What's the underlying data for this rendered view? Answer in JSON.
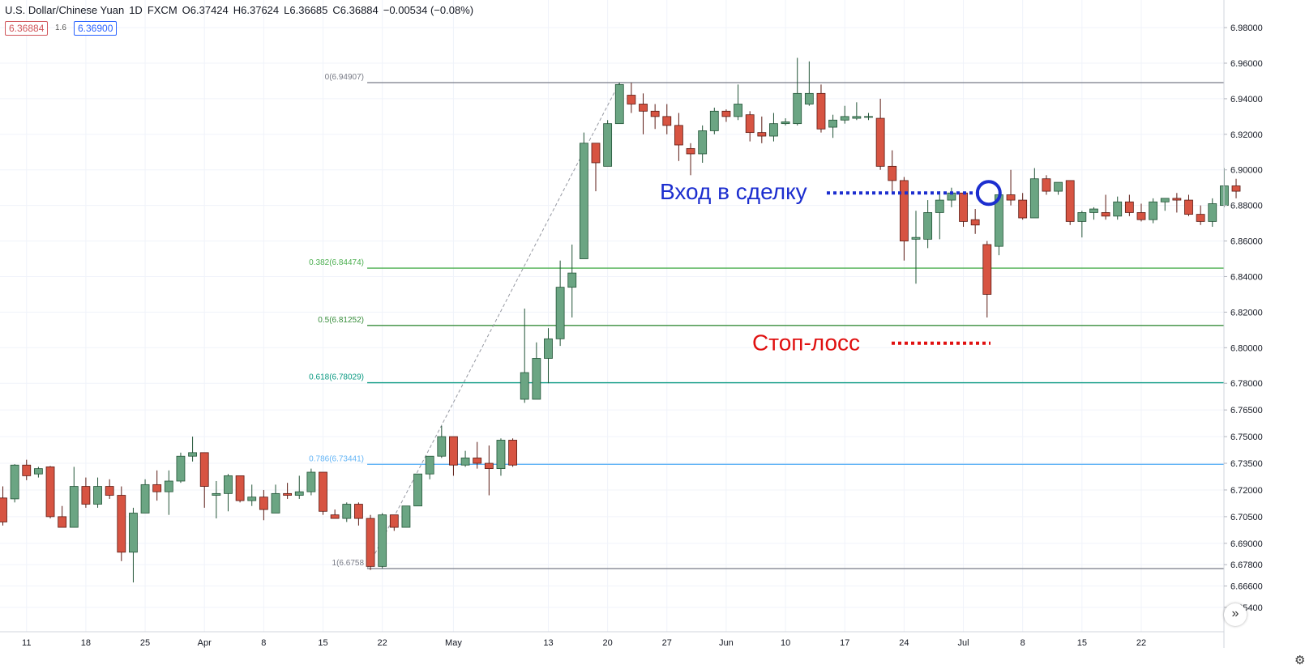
{
  "header": {
    "symbol": "U.S. Dollar/Chinese Yuan",
    "interval": "1D",
    "exchange": "FXCM",
    "open": "O6.37424",
    "high": "H6.37624",
    "low": "L6.36685",
    "close": "C6.36884",
    "change": "−0.00534 (−0.08%)"
  },
  "badges": {
    "close": "6.36884",
    "spread": "1.6",
    "ask": "6.36900"
  },
  "colors": {
    "up": "#6ba583",
    "down": "#d75442",
    "up_border": "#225437",
    "down_border": "#5b1a13"
  },
  "icons": {
    "scroll": "double-chevron-right-icon",
    "settings": "gear-icon"
  },
  "nav_glyph": "»",
  "gear_glyph": "⚙",
  "chart_data": {
    "type": "candlestick",
    "ylim": [
      6.645,
      6.99
    ],
    "y_ticks": [
      "6.98000",
      "6.96000",
      "6.94000",
      "6.92000",
      "6.90000",
      "6.88000",
      "6.86000",
      "6.84000",
      "6.82000",
      "6.80000",
      "6.78000",
      "6.76500",
      "6.75000",
      "6.73500",
      "6.72000",
      "6.70500",
      "6.69000",
      "6.67800",
      "6.66600",
      "6.65400"
    ],
    "x_labels": [
      {
        "i": 2,
        "label": "11"
      },
      {
        "i": 7,
        "label": "18"
      },
      {
        "i": 12,
        "label": "25"
      },
      {
        "i": 17,
        "label": "Apr"
      },
      {
        "i": 22,
        "label": "8"
      },
      {
        "i": 27,
        "label": "15"
      },
      {
        "i": 32,
        "label": "22"
      },
      {
        "i": 38,
        "label": "May"
      },
      {
        "i": 46,
        "label": "13"
      },
      {
        "i": 51,
        "label": "20"
      },
      {
        "i": 56,
        "label": "27"
      },
      {
        "i": 61,
        "label": "Jun"
      },
      {
        "i": 66,
        "label": "10"
      },
      {
        "i": 71,
        "label": "17"
      },
      {
        "i": 76,
        "label": "24"
      },
      {
        "i": 81,
        "label": "Jul"
      },
      {
        "i": 86,
        "label": "8"
      },
      {
        "i": 91,
        "label": "15"
      },
      {
        "i": 96,
        "label": "22"
      }
    ],
    "candles": [
      [
        6.7155,
        6.722,
        6.7,
        6.702
      ],
      [
        6.715,
        6.7345,
        6.713,
        6.734
      ],
      [
        6.734,
        6.737,
        6.7255,
        6.728
      ],
      [
        6.729,
        6.733,
        6.727,
        6.732
      ],
      [
        6.733,
        6.7335,
        6.704,
        6.705
      ],
      [
        6.705,
        6.711,
        6.699,
        6.699
      ],
      [
        6.699,
        6.733,
        6.699,
        6.722
      ],
      [
        6.722,
        6.727,
        6.71,
        6.712
      ],
      [
        6.712,
        6.727,
        6.71,
        6.722
      ],
      [
        6.722,
        6.726,
        6.715,
        6.717
      ],
      [
        6.717,
        6.722,
        6.68,
        6.685
      ],
      [
        6.685,
        6.71,
        6.668,
        6.707
      ],
      [
        6.707,
        6.726,
        6.707,
        6.723
      ],
      [
        6.723,
        6.731,
        6.714,
        6.719
      ],
      [
        6.719,
        6.731,
        6.706,
        6.725
      ],
      [
        6.725,
        6.741,
        6.724,
        6.739
      ],
      [
        6.739,
        6.75,
        6.736,
        6.741
      ],
      [
        6.741,
        6.741,
        6.71,
        6.722
      ],
      [
        6.717,
        6.725,
        6.704,
        6.718
      ],
      [
        6.718,
        6.729,
        6.708,
        6.728
      ],
      [
        6.728,
        6.728,
        6.713,
        6.714
      ],
      [
        6.714,
        6.723,
        6.711,
        6.716
      ],
      [
        6.716,
        6.72,
        6.703,
        6.709
      ],
      [
        6.707,
        6.723,
        6.707,
        6.718
      ],
      [
        6.718,
        6.724,
        6.715,
        6.717
      ],
      [
        6.717,
        6.728,
        6.715,
        6.719
      ],
      [
        6.719,
        6.732,
        6.717,
        6.73
      ],
      [
        6.73,
        6.73,
        6.706,
        6.708
      ],
      [
        6.706,
        6.709,
        6.704,
        6.704
      ],
      [
        6.704,
        6.713,
        6.702,
        6.712
      ],
      [
        6.712,
        6.713,
        6.7,
        6.704
      ],
      [
        6.704,
        6.706,
        6.675,
        6.677
      ],
      [
        6.677,
        6.707,
        6.676,
        6.706
      ],
      [
        6.706,
        6.706,
        6.697,
        6.699
      ],
      [
        6.699,
        6.71,
        6.699,
        6.711
      ],
      [
        6.711,
        6.729,
        6.711,
        6.729
      ],
      [
        6.729,
        6.738,
        6.726,
        6.739
      ],
      [
        6.739,
        6.756,
        6.738,
        6.75
      ],
      [
        6.75,
        6.75,
        6.728,
        6.734
      ],
      [
        6.734,
        6.742,
        6.733,
        6.738
      ],
      [
        6.738,
        6.747,
        6.732,
        6.735
      ],
      [
        6.735,
        6.745,
        6.717,
        6.732
      ],
      [
        6.732,
        6.749,
        6.728,
        6.748
      ],
      [
        6.748,
        6.749,
        6.733,
        6.734
      ],
      [
        6.771,
        6.822,
        6.769,
        6.786
      ],
      [
        6.771,
        6.803,
        6.771,
        6.794
      ],
      [
        6.794,
        6.811,
        6.78,
        6.805
      ],
      [
        6.805,
        6.849,
        6.801,
        6.834
      ],
      [
        6.834,
        6.858,
        6.817,
        6.842
      ],
      [
        6.85,
        6.921,
        6.85,
        6.915
      ],
      [
        6.915,
        6.915,
        6.888,
        6.904
      ],
      [
        6.902,
        6.928,
        6.902,
        6.926
      ],
      [
        6.926,
        6.949,
        6.926,
        6.948
      ],
      [
        6.942,
        6.949,
        6.932,
        6.937
      ],
      [
        6.937,
        6.943,
        6.92,
        6.933
      ],
      [
        6.933,
        6.937,
        6.923,
        6.93
      ],
      [
        6.93,
        6.937,
        6.92,
        6.925
      ],
      [
        6.925,
        6.932,
        6.905,
        6.914
      ],
      [
        6.912,
        6.915,
        6.897,
        6.909
      ],
      [
        6.909,
        6.925,
        6.904,
        6.922
      ],
      [
        6.922,
        6.935,
        6.92,
        6.933
      ],
      [
        6.933,
        6.934,
        6.927,
        6.93
      ],
      [
        6.93,
        6.948,
        6.928,
        6.937
      ],
      [
        6.931,
        6.933,
        6.916,
        6.921
      ],
      [
        6.921,
        6.93,
        6.915,
        6.919
      ],
      [
        6.919,
        6.932,
        6.916,
        6.926
      ],
      [
        6.926,
        6.929,
        6.925,
        6.927
      ],
      [
        6.926,
        6.963,
        6.925,
        6.943
      ],
      [
        6.937,
        6.961,
        6.936,
        6.943
      ],
      [
        6.943,
        6.948,
        6.921,
        6.923
      ],
      [
        6.924,
        6.931,
        6.918,
        6.928
      ],
      [
        6.928,
        6.936,
        6.926,
        6.93
      ],
      [
        6.929,
        6.938,
        6.928,
        6.93
      ],
      [
        6.93,
        6.932,
        6.928,
        6.93
      ],
      [
        6.929,
        6.94,
        6.9,
        6.902
      ],
      [
        6.902,
        6.911,
        6.887,
        6.894
      ],
      [
        6.894,
        6.896,
        6.849,
        6.86
      ],
      [
        6.861,
        6.877,
        6.836,
        6.862
      ],
      [
        6.861,
        6.883,
        6.856,
        6.876
      ],
      [
        6.876,
        6.888,
        6.861,
        6.883
      ],
      [
        6.883,
        6.89,
        6.879,
        6.887
      ],
      [
        6.887,
        6.887,
        6.868,
        6.871
      ],
      [
        6.872,
        6.878,
        6.864,
        6.869
      ],
      [
        6.858,
        6.86,
        6.817,
        6.83
      ],
      [
        6.857,
        6.888,
        6.852,
        6.886
      ],
      [
        6.886,
        6.9,
        6.88,
        6.883
      ],
      [
        6.883,
        6.887,
        6.872,
        6.873
      ],
      [
        6.873,
        6.901,
        6.873,
        6.895
      ],
      [
        6.895,
        6.897,
        6.886,
        6.888
      ],
      [
        6.888,
        6.893,
        6.886,
        6.893
      ],
      [
        6.894,
        6.894,
        6.869,
        6.871
      ],
      [
        6.871,
        6.877,
        6.862,
        6.876
      ],
      [
        6.876,
        6.879,
        6.872,
        6.878
      ],
      [
        6.876,
        6.886,
        6.872,
        6.874
      ],
      [
        6.874,
        6.885,
        6.872,
        6.882
      ],
      [
        6.882,
        6.886,
        6.874,
        6.876
      ],
      [
        6.876,
        6.881,
        6.871,
        6.872
      ],
      [
        6.872,
        6.884,
        6.87,
        6.882
      ],
      [
        6.882,
        6.884,
        6.877,
        6.884
      ],
      [
        6.884,
        6.887,
        6.876,
        6.883
      ],
      [
        6.883,
        6.886,
        6.874,
        6.875
      ],
      [
        6.875,
        6.88,
        6.869,
        6.871
      ],
      [
        6.871,
        6.884,
        6.868,
        6.881
      ],
      [
        6.88,
        6.901,
        6.879,
        6.891
      ],
      [
        6.891,
        6.895,
        6.884,
        6.888
      ]
    ],
    "fib_levels": [
      {
        "label": "0(6.94907)",
        "value": 6.94907,
        "color": "#787b86"
      },
      {
        "label": "0.382(6.84474)",
        "value": 6.84474,
        "color": "#4caf50"
      },
      {
        "label": "0.5(6.81252)",
        "value": 6.81252,
        "color": "#388e3c"
      },
      {
        "label": "0.618(6.78029)",
        "value": 6.78029,
        "color": "#089981"
      },
      {
        "label": "0.786(6.73441)",
        "value": 6.73441,
        "color": "#64b5f6"
      },
      {
        "label": "1(6.6758",
        "value": 6.6758,
        "color": "#787b86"
      }
    ],
    "annotations": {
      "entry_text": "Вход в сделку",
      "entry_value": 6.887,
      "entry_color": "#1c2ecf",
      "stop_text": "Стоп-лосс",
      "stop_value": 6.803,
      "stop_color": "#e01010"
    }
  }
}
